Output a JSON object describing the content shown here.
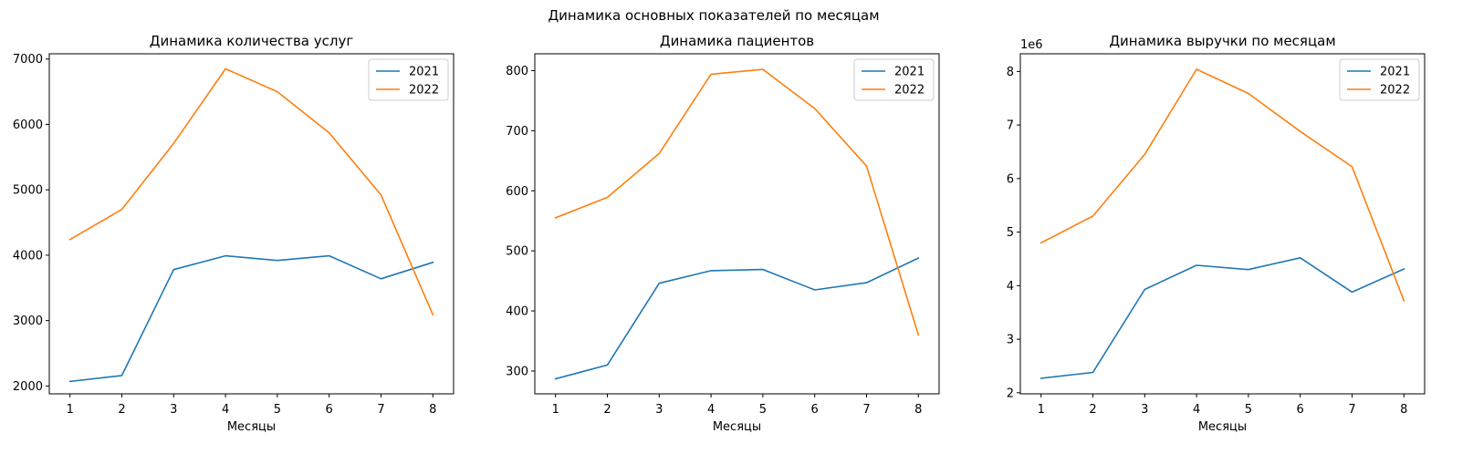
{
  "figure": {
    "suptitle": "Динамика основных показателей по месяцам"
  },
  "chart_data": [
    {
      "type": "line",
      "title": "Динамика количества услуг",
      "xlabel": "Месяцы",
      "ylabel": "",
      "x": [
        1,
        2,
        3,
        4,
        5,
        6,
        7,
        8
      ],
      "xticks": [
        1,
        2,
        3,
        4,
        5,
        6,
        7,
        8
      ],
      "xlim": [
        0.6,
        8.4
      ],
      "ylim": [
        1880,
        7080
      ],
      "yticks": [
        2000,
        3000,
        4000,
        5000,
        6000,
        7000
      ],
      "ytick_labels": [
        "2000",
        "3000",
        "4000",
        "5000",
        "6000",
        "7000"
      ],
      "offset_label": "",
      "grid": false,
      "legend": "top-right",
      "series": [
        {
          "name": "2021",
          "color": "#1f77b4",
          "values": [
            2070,
            2160,
            3780,
            3990,
            3920,
            3990,
            3640,
            3890
          ]
        },
        {
          "name": "2022",
          "color": "#ff7f0e",
          "values": [
            4240,
            4700,
            5710,
            6850,
            6500,
            5870,
            4920,
            3090
          ]
        }
      ]
    },
    {
      "type": "line",
      "title": "Динамика пациентов",
      "xlabel": "Месяцы",
      "ylabel": "",
      "x": [
        1,
        2,
        3,
        4,
        5,
        6,
        7,
        8
      ],
      "xticks": [
        1,
        2,
        3,
        4,
        5,
        6,
        7,
        8
      ],
      "xlim": [
        0.6,
        8.4
      ],
      "ylim": [
        262,
        828
      ],
      "yticks": [
        300,
        400,
        500,
        600,
        700,
        800
      ],
      "ytick_labels": [
        "300",
        "400",
        "500",
        "600",
        "700",
        "800"
      ],
      "offset_label": "",
      "grid": false,
      "legend": "top-right",
      "series": [
        {
          "name": "2021",
          "color": "#1f77b4",
          "values": [
            287,
            310,
            446,
            467,
            469,
            435,
            447,
            488
          ]
        },
        {
          "name": "2022",
          "color": "#ff7f0e",
          "values": [
            555,
            589,
            662,
            794,
            802,
            737,
            641,
            360
          ]
        }
      ]
    },
    {
      "type": "line",
      "title": "Динамика выручки по месяцам",
      "xlabel": "Месяцы",
      "ylabel": "",
      "x": [
        1,
        2,
        3,
        4,
        5,
        6,
        7,
        8
      ],
      "xticks": [
        1,
        2,
        3,
        4,
        5,
        6,
        7,
        8
      ],
      "xlim": [
        0.6,
        8.4
      ],
      "ylim": [
        1980000,
        8330000
      ],
      "yticks": [
        2000000,
        3000000,
        4000000,
        5000000,
        6000000,
        7000000,
        8000000
      ],
      "ytick_labels": [
        "2",
        "3",
        "4",
        "5",
        "6",
        "7",
        "8"
      ],
      "offset_label": "1e6",
      "grid": false,
      "legend": "top-right",
      "series": [
        {
          "name": "2021",
          "color": "#1f77b4",
          "values": [
            2270000,
            2380000,
            3930000,
            4380000,
            4300000,
            4520000,
            3880000,
            4310000
          ]
        },
        {
          "name": "2022",
          "color": "#ff7f0e",
          "values": [
            4800000,
            5300000,
            6450000,
            8040000,
            7590000,
            6880000,
            6220000,
            3720000
          ]
        }
      ]
    }
  ]
}
